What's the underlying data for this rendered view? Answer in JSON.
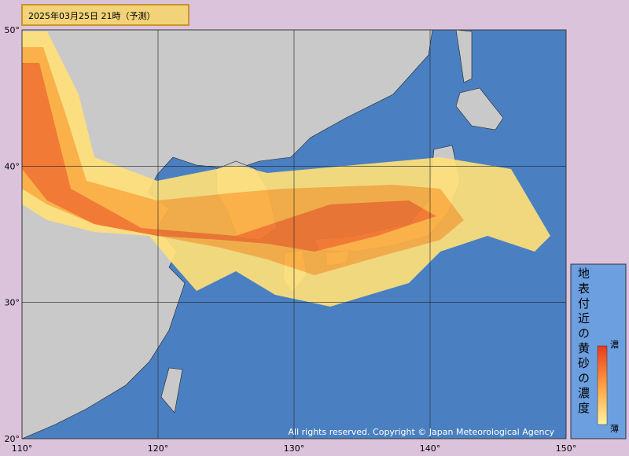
{
  "header": {
    "title": "2025年03月25日 21時（予測）"
  },
  "map": {
    "lonlim": [
      110,
      150
    ],
    "latlim": [
      20,
      50
    ],
    "lon_ticks": [
      {
        "value": 110,
        "label": "110°"
      },
      {
        "value": 120,
        "label": "120°"
      },
      {
        "value": 130,
        "label": "130°"
      },
      {
        "value": 140,
        "label": "140°"
      },
      {
        "value": 150,
        "label": "150°"
      }
    ],
    "lat_ticks": [
      {
        "value": 50,
        "label": "50°"
      },
      {
        "value": 40,
        "label": "40°"
      },
      {
        "value": 30,
        "label": "30°"
      },
      {
        "value": 20,
        "label": "20°"
      }
    ],
    "copyright": "All rights reserved. Copyright © Japan Meteorological Agency"
  },
  "legend": {
    "title": "地表付近の黄砂の濃度",
    "high": "濃",
    "low": "薄"
  }
}
